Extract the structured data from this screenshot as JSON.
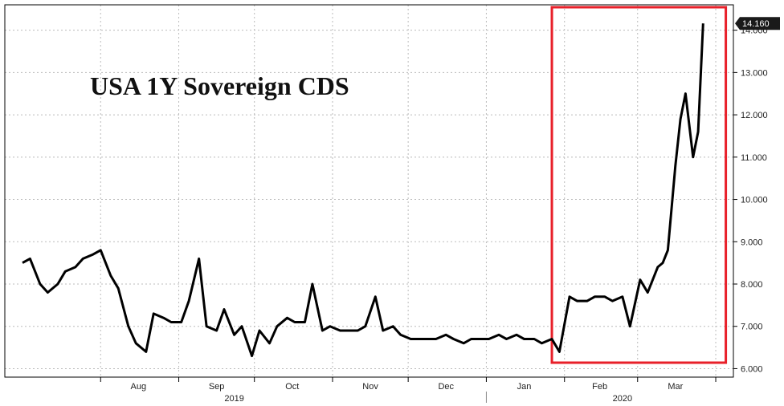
{
  "chart_data": {
    "type": "line",
    "title": "USA 1Y Sovereign CDS",
    "xlabel": "",
    "ylabel": "",
    "ylim": [
      5.8,
      14.6
    ],
    "yticks": [
      "6.000",
      "7.000",
      "8.000",
      "9.000",
      "10.000",
      "11.000",
      "12.000",
      "13.000",
      "14.000"
    ],
    "x_month_labels": [
      "Aug",
      "Sep",
      "Oct",
      "Nov",
      "Dec",
      "Jan",
      "Feb",
      "Mar"
    ],
    "x_year_labels": [
      "2019",
      "2020"
    ],
    "last_value_label": "14.160",
    "grid": true,
    "legend": "none",
    "line_color": "#000000",
    "highlight_box_color": "#e8202a",
    "series": [
      {
        "x": [
          "2019-07-01",
          "2019-07-04",
          "2019-07-08",
          "2019-07-11",
          "2019-07-15",
          "2019-07-18",
          "2019-07-22",
          "2019-07-25",
          "2019-07-29",
          "2019-08-01",
          "2019-08-05",
          "2019-08-08",
          "2019-08-12",
          "2019-08-15",
          "2019-08-19",
          "2019-08-22",
          "2019-08-26",
          "2019-08-29",
          "2019-09-02",
          "2019-09-05",
          "2019-09-09",
          "2019-09-12",
          "2019-09-16",
          "2019-09-19",
          "2019-09-23",
          "2019-09-26",
          "2019-09-30",
          "2019-10-03",
          "2019-10-07",
          "2019-10-10",
          "2019-10-14",
          "2019-10-17",
          "2019-10-21",
          "2019-10-24",
          "2019-10-28",
          "2019-10-31",
          "2019-11-04",
          "2019-11-07",
          "2019-11-11",
          "2019-11-14",
          "2019-11-18",
          "2019-11-21",
          "2019-11-25",
          "2019-11-28",
          "2019-12-02",
          "2019-12-05",
          "2019-12-09",
          "2019-12-12",
          "2019-12-16",
          "2019-12-19",
          "2019-12-23",
          "2019-12-26",
          "2019-12-30",
          "2020-01-02",
          "2020-01-06",
          "2020-01-09",
          "2020-01-13",
          "2020-01-16",
          "2020-01-20",
          "2020-01-23",
          "2020-01-27",
          "2020-01-30",
          "2020-02-03",
          "2020-02-06",
          "2020-02-10",
          "2020-02-13",
          "2020-02-17",
          "2020-02-20",
          "2020-02-24",
          "2020-02-27",
          "2020-03-02",
          "2020-03-05",
          "2020-03-09",
          "2020-03-11",
          "2020-03-13",
          "2020-03-16",
          "2020-03-18",
          "2020-03-20",
          "2020-03-23",
          "2020-03-25",
          "2020-03-27"
        ],
        "values": [
          8.5,
          8.6,
          8.0,
          7.8,
          8.0,
          8.3,
          8.4,
          8.6,
          8.7,
          8.8,
          8.2,
          7.9,
          7.0,
          6.6,
          6.4,
          7.3,
          7.2,
          7.1,
          7.1,
          7.6,
          8.6,
          7.0,
          6.9,
          7.4,
          6.8,
          7.0,
          6.3,
          6.9,
          6.6,
          7.0,
          7.2,
          7.1,
          7.1,
          8.0,
          6.9,
          7.0,
          6.9,
          6.9,
          6.9,
          7.0,
          7.7,
          6.9,
          7.0,
          6.8,
          6.7,
          6.7,
          6.7,
          6.7,
          6.8,
          6.7,
          6.6,
          6.7,
          6.7,
          6.7,
          6.8,
          6.7,
          6.8,
          6.7,
          6.7,
          6.6,
          6.7,
          6.4,
          7.7,
          7.6,
          7.6,
          7.7,
          7.7,
          7.6,
          7.7,
          7.0,
          8.1,
          7.8,
          8.4,
          8.5,
          8.8,
          10.8,
          11.9,
          12.5,
          11.0,
          11.6,
          14.16
        ]
      }
    ]
  }
}
